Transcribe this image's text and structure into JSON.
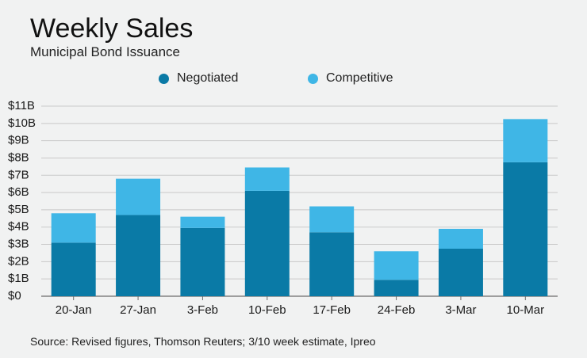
{
  "chart_data": {
    "type": "bar",
    "stacked": true,
    "title": "Weekly Sales",
    "subtitle": "Municipal Bond Issuance",
    "categories": [
      "20-Jan",
      "27-Jan",
      "3-Feb",
      "10-Feb",
      "17-Feb",
      "24-Feb",
      "3-Mar",
      "10-Mar"
    ],
    "series": [
      {
        "name": "Negotiated",
        "color": "#0a7aa6",
        "values": [
          3.1,
          4.7,
          3.95,
          6.1,
          3.7,
          0.95,
          2.75,
          7.75
        ]
      },
      {
        "name": "Competitive",
        "color": "#3fb6e6",
        "values": [
          1.7,
          2.1,
          0.65,
          1.35,
          1.5,
          1.65,
          1.15,
          2.5
        ]
      }
    ],
    "y_ticks": [
      "$0",
      "$1B",
      "$2B",
      "$3B",
      "$4B",
      "$5B",
      "$6B",
      "$7B",
      "$8B",
      "$9B",
      "$10B",
      "$11B"
    ],
    "ylim": [
      0,
      11
    ],
    "grid": true,
    "legend_position": "top",
    "source": "Source: Revised figures, Thomson Reuters; 3/10 week estimate, Ipreo"
  }
}
